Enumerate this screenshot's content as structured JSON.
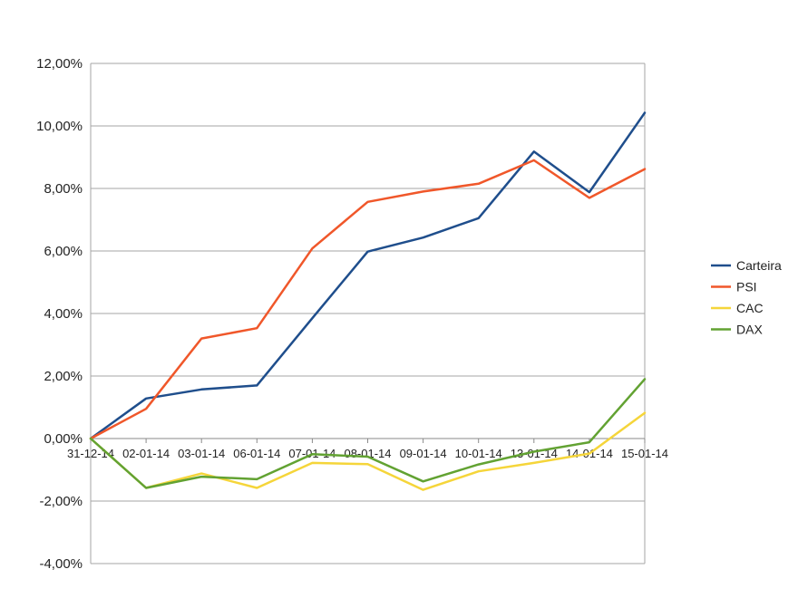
{
  "chart_data": {
    "type": "line",
    "title": "",
    "xlabel": "",
    "ylabel": "",
    "categories": [
      "31-12-14",
      "02-01-14",
      "03-01-14",
      "06-01-14",
      "07-01-14",
      "08-01-14",
      "09-01-14",
      "10-01-14",
      "13-01-14",
      "14-01-14",
      "15-01-14"
    ],
    "y_ticks": [
      "-4,00%",
      "-2,00%",
      "0,00%",
      "2,00%",
      "4,00%",
      "6,00%",
      "8,00%",
      "10,00%",
      "12,00%"
    ],
    "ylim": [
      -4,
      12
    ],
    "grid": true,
    "legend": "right",
    "series": [
      {
        "name": "Carteira",
        "color": "#1f4e8c",
        "values": [
          0,
          1.28,
          1.57,
          1.7,
          3.85,
          5.98,
          6.43,
          7.05,
          9.18,
          7.88,
          10.42
        ]
      },
      {
        "name": "PSI",
        "color": "#f0572a",
        "values": [
          0,
          0.95,
          3.2,
          3.53,
          6.08,
          7.57,
          7.9,
          8.15,
          8.9,
          7.7,
          8.62
        ]
      },
      {
        "name": "CAC",
        "color": "#f5d53a",
        "values": [
          0,
          -1.58,
          -1.12,
          -1.58,
          -0.78,
          -0.82,
          -1.64,
          -1.05,
          -0.78,
          -0.48,
          0.82
        ]
      },
      {
        "name": "DAX",
        "color": "#62a232",
        "values": [
          0,
          -1.58,
          -1.22,
          -1.3,
          -0.5,
          -0.58,
          -1.37,
          -0.83,
          -0.42,
          -0.12,
          1.9
        ]
      }
    ]
  }
}
